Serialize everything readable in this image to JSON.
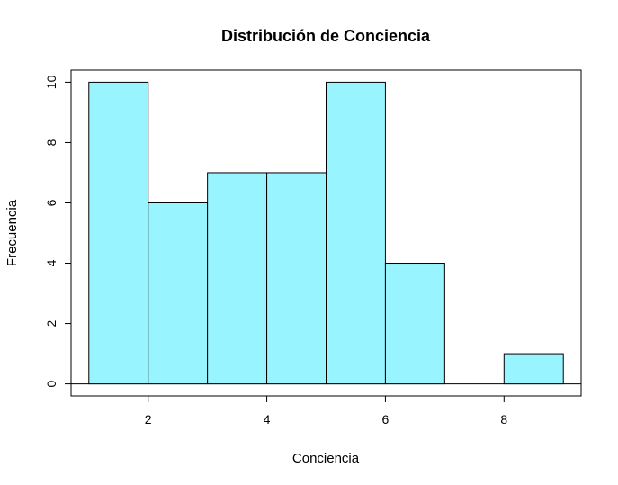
{
  "chart_data": {
    "type": "bar",
    "subtype": "histogram",
    "title": "Distribución de Conciencia",
    "xlabel": "Conciencia",
    "ylabel": "Frecuencia",
    "bins": [
      {
        "start": 1,
        "end": 2,
        "count": 10
      },
      {
        "start": 2,
        "end": 3,
        "count": 6
      },
      {
        "start": 3,
        "end": 4,
        "count": 7
      },
      {
        "start": 4,
        "end": 5,
        "count": 7
      },
      {
        "start": 5,
        "end": 6,
        "count": 10
      },
      {
        "start": 6,
        "end": 7,
        "count": 4
      },
      {
        "start": 7,
        "end": 8,
        "count": 0
      },
      {
        "start": 8,
        "end": 9,
        "count": 1
      }
    ],
    "xlim": [
      0.7,
      9.3
    ],
    "ylim": [
      -0.4,
      10.4
    ],
    "xticks": [
      2,
      4,
      6,
      8
    ],
    "yticks": [
      0,
      2,
      4,
      6,
      8,
      10
    ],
    "bar_color": "#98f5ff",
    "grid": false,
    "box": true
  }
}
